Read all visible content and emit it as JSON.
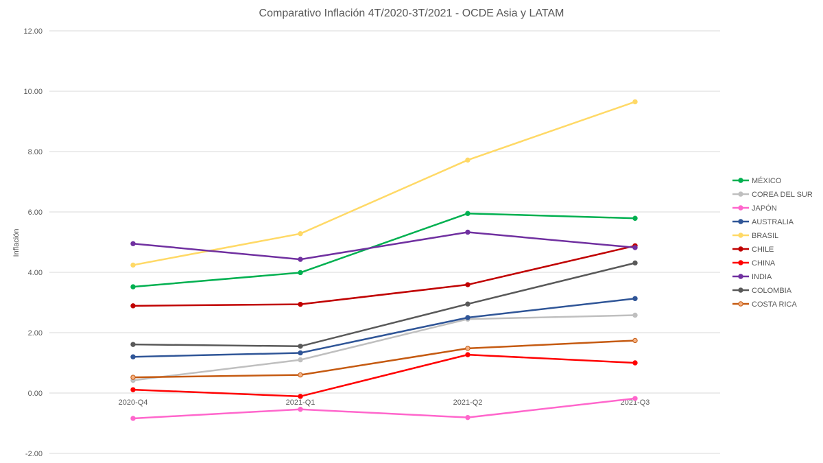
{
  "chart_data": {
    "type": "line",
    "title": "Comparativo Inflación 4T/2020-3T/2021 - OCDE Asia y LATAM",
    "xlabel": "",
    "ylabel": "Inflación",
    "ylim": [
      -2,
      12
    ],
    "yticks": [
      "-2.00",
      "0.00",
      "2.00",
      "4.00",
      "6.00",
      "8.00",
      "10.00",
      "12.00"
    ],
    "grid": true,
    "legend_position": "right",
    "categories": [
      "2020-Q4",
      "2021-Q1",
      "2021-Q2",
      "2021-Q3"
    ],
    "series": [
      {
        "name": "MÉXICO",
        "color": "#00b050",
        "values": [
          3.52,
          3.99,
          5.95,
          5.79
        ]
      },
      {
        "name": "COREA DEL SUR",
        "color": "#bfbfbf",
        "values": [
          0.42,
          1.1,
          2.45,
          2.58
        ]
      },
      {
        "name": "JAPÓN",
        "color": "#ff66cc",
        "values": [
          -0.84,
          -0.54,
          -0.81,
          -0.18
        ]
      },
      {
        "name": "AUSTRALIA",
        "color": "#2f5597",
        "values": [
          1.2,
          1.33,
          2.5,
          3.13
        ]
      },
      {
        "name": "BRASIL",
        "color": "#ffd966",
        "values": [
          4.24,
          5.28,
          7.72,
          9.65
        ]
      },
      {
        "name": "CHILE",
        "color": "#c00000",
        "values": [
          2.89,
          2.94,
          3.59,
          4.88
        ]
      },
      {
        "name": "CHINA",
        "color": "#ff0000",
        "values": [
          0.11,
          -0.11,
          1.27,
          1.0
        ]
      },
      {
        "name": "INDIA",
        "color": "#7030a0",
        "values": [
          4.95,
          4.43,
          5.33,
          4.82
        ]
      },
      {
        "name": "COLOMBIA",
        "color": "#595959",
        "values": [
          1.61,
          1.55,
          2.95,
          4.31
        ]
      },
      {
        "name": "COSTA RICA",
        "color": "#c55a11",
        "marker_fill": "#f4b183",
        "values": [
          0.52,
          0.6,
          1.48,
          1.74
        ]
      }
    ]
  }
}
